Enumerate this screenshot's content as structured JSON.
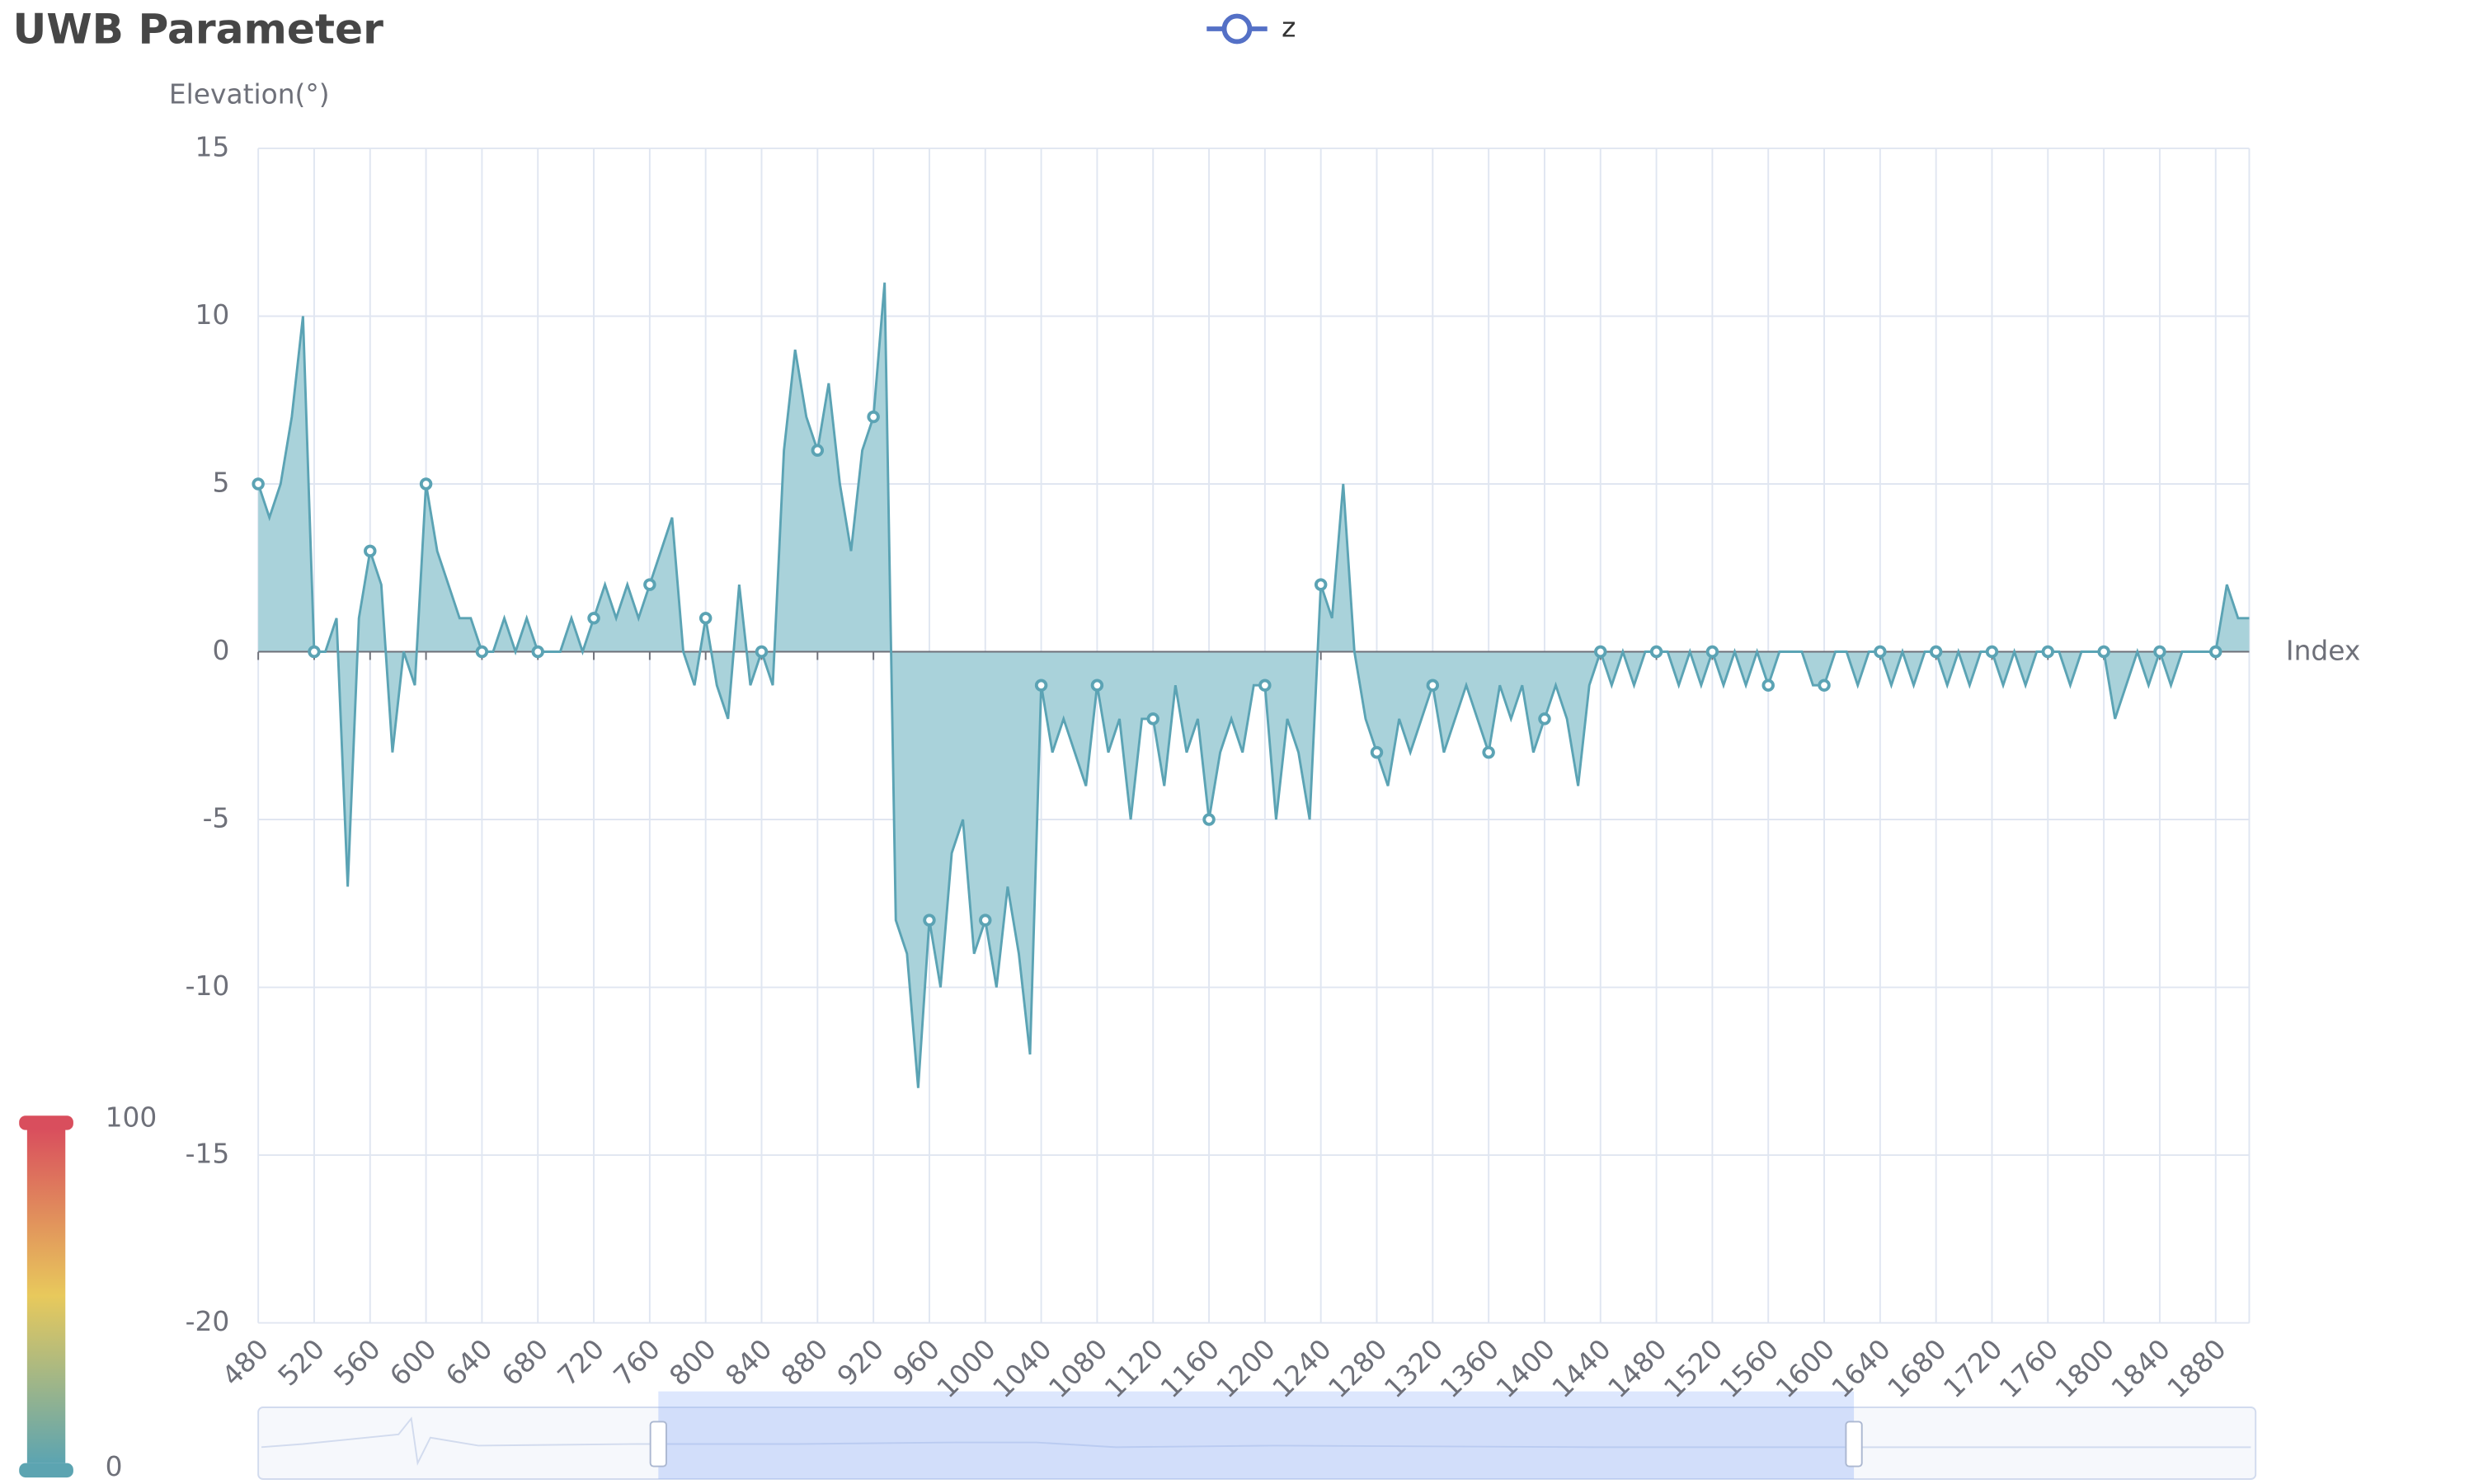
{
  "chart_data": {
    "type": "area-line",
    "title": "UWB Parameter",
    "x_axis_label": "Index",
    "y_axis_label": "Elevation(°)",
    "xlim": [
      480,
      1904
    ],
    "ylim": [
      -20,
      15
    ],
    "xticks": [
      480,
      520,
      560,
      600,
      640,
      680,
      720,
      760,
      800,
      840,
      880,
      920,
      960,
      1000,
      1040,
      1080,
      1120,
      1160,
      1200,
      1240,
      1280,
      1320,
      1360,
      1400,
      1440,
      1480,
      1520,
      1560,
      1600,
      1640,
      1680,
      1720,
      1760,
      1800,
      1840,
      1880
    ],
    "yticks": [
      -20,
      -15,
      -10,
      -5,
      0,
      5,
      10,
      15
    ],
    "grid": true,
    "x": [
      480,
      488,
      496,
      504,
      512,
      520,
      528,
      536,
      544,
      552,
      560,
      568,
      576,
      584,
      592,
      600,
      608,
      616,
      624,
      632,
      640,
      648,
      656,
      664,
      672,
      680,
      688,
      696,
      704,
      712,
      720,
      728,
      736,
      744,
      752,
      760,
      768,
      776,
      784,
      792,
      800,
      808,
      816,
      824,
      832,
      840,
      848,
      856,
      864,
      872,
      880,
      888,
      896,
      904,
      912,
      920,
      928,
      936,
      944,
      952,
      960,
      968,
      976,
      984,
      992,
      1000,
      1008,
      1016,
      1024,
      1032,
      1040,
      1048,
      1056,
      1064,
      1072,
      1080,
      1088,
      1096,
      1104,
      1112,
      1120,
      1128,
      1136,
      1144,
      1152,
      1160,
      1168,
      1176,
      1184,
      1192,
      1200,
      1208,
      1216,
      1224,
      1232,
      1240,
      1248,
      1256,
      1264,
      1272,
      1280,
      1288,
      1296,
      1304,
      1312,
      1320,
      1328,
      1336,
      1344,
      1352,
      1360,
      1368,
      1376,
      1384,
      1392,
      1400,
      1408,
      1416,
      1424,
      1432,
      1440,
      1448,
      1456,
      1464,
      1472,
      1480,
      1488,
      1496,
      1504,
      1512,
      1520,
      1528,
      1536,
      1544,
      1552,
      1560,
      1568,
      1576,
      1584,
      1592,
      1600,
      1608,
      1616,
      1624,
      1632,
      1640,
      1648,
      1656,
      1664,
      1672,
      1680,
      1688,
      1696,
      1704,
      1712,
      1720,
      1728,
      1736,
      1744,
      1752,
      1760,
      1768,
      1776,
      1784,
      1792,
      1800,
      1808,
      1816,
      1824,
      1832,
      1840,
      1848,
      1856,
      1864,
      1872,
      1880,
      1888,
      1896,
      1904
    ],
    "series": [
      {
        "name": "z",
        "color": "#5ba3b4",
        "area_color": "#a9d2da",
        "values": [
          5,
          4,
          5,
          7,
          10,
          0,
          0,
          1,
          -7,
          1,
          3,
          2,
          -3,
          0,
          -1,
          5,
          3,
          2,
          1,
          1,
          0,
          0,
          1,
          0,
          1,
          0,
          0,
          0,
          1,
          0,
          1,
          2,
          1,
          2,
          1,
          2,
          3,
          4,
          0,
          -1,
          1,
          -1,
          -2,
          2,
          -1,
          0,
          -1,
          6,
          9,
          7,
          6,
          8,
          5,
          3,
          6,
          7,
          11,
          -8,
          -9,
          -13,
          -8,
          -10,
          -6,
          -5,
          -9,
          -8,
          -10,
          -7,
          -9,
          -12,
          -1,
          -3,
          -2,
          -3,
          -4,
          -1,
          -3,
          -2,
          -5,
          -2,
          -2,
          -4,
          -1,
          -3,
          -2,
          -5,
          -3,
          -2,
          -3,
          -1,
          -1,
          -5,
          -2,
          -3,
          -5,
          2,
          1,
          5,
          0,
          -2,
          -3,
          -4,
          -2,
          -3,
          -2,
          -1,
          -3,
          -2,
          -1,
          -2,
          -3,
          -1,
          -2,
          -1,
          -3,
          -2,
          -1,
          -2,
          -4,
          -1,
          0,
          -1,
          0,
          -1,
          0,
          0,
          0,
          -1,
          0,
          -1,
          0,
          -1,
          0,
          -1,
          0,
          -1,
          0,
          0,
          0,
          -1,
          -1,
          0,
          0,
          -1,
          0,
          0,
          -1,
          0,
          -1,
          0,
          0,
          -1,
          0,
          -1,
          0,
          0,
          -1,
          0,
          -1,
          0,
          0,
          0,
          -1,
          0,
          0,
          0,
          -2,
          -1,
          0,
          -1,
          0,
          -1,
          0,
          0,
          0,
          0,
          2,
          1,
          1
        ]
      }
    ],
    "legend_position": "top",
    "visual_map": {
      "min": 0,
      "max": 100,
      "colors": [
        "#5ca4b1",
        "#e8c95c",
        "#d94e5d"
      ]
    }
  }
}
